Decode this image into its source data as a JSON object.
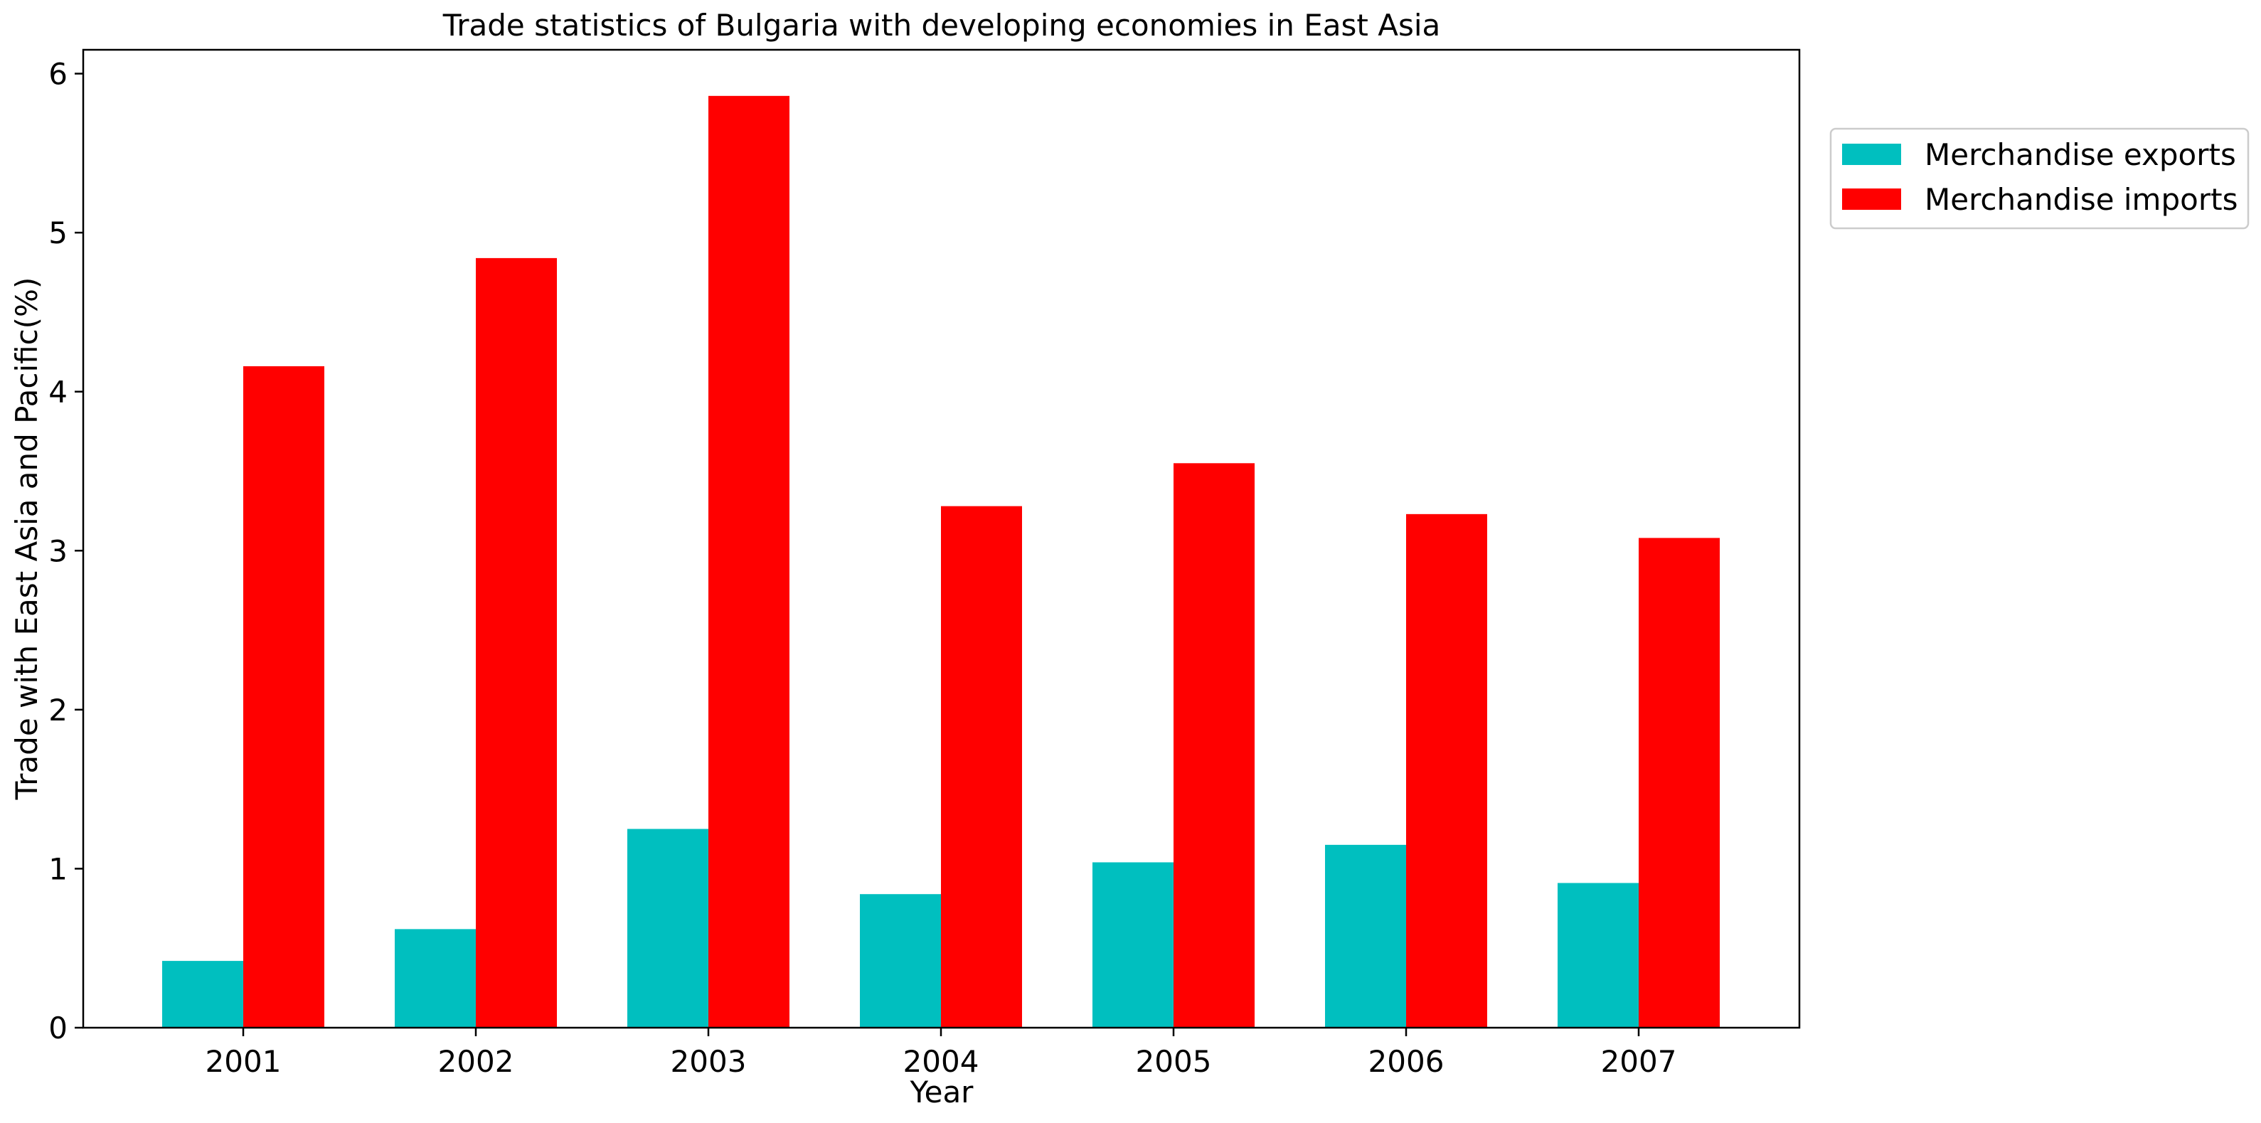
{
  "chart_data": {
    "type": "bar",
    "title": "Trade statistics of Bulgaria with developing economies in East Asia",
    "xlabel": "Year",
    "ylabel": "Trade with East Asia and Pacific(%)",
    "categories": [
      "2001",
      "2002",
      "2003",
      "2004",
      "2005",
      "2006",
      "2007"
    ],
    "series": [
      {
        "name": "Merchandise exports",
        "color": "#00bfbf",
        "values": [
          0.42,
          0.62,
          1.25,
          0.84,
          1.04,
          1.15,
          0.91
        ]
      },
      {
        "name": "Merchandise imports",
        "color": "#ff0000",
        "values": [
          4.16,
          4.84,
          5.86,
          3.28,
          3.55,
          3.23,
          3.08
        ]
      }
    ],
    "ylim": [
      0,
      6.15
    ],
    "yticks": [
      0,
      1,
      2,
      3,
      4,
      5,
      6
    ],
    "grid": false,
    "legend_position": "outside-top-right"
  }
}
